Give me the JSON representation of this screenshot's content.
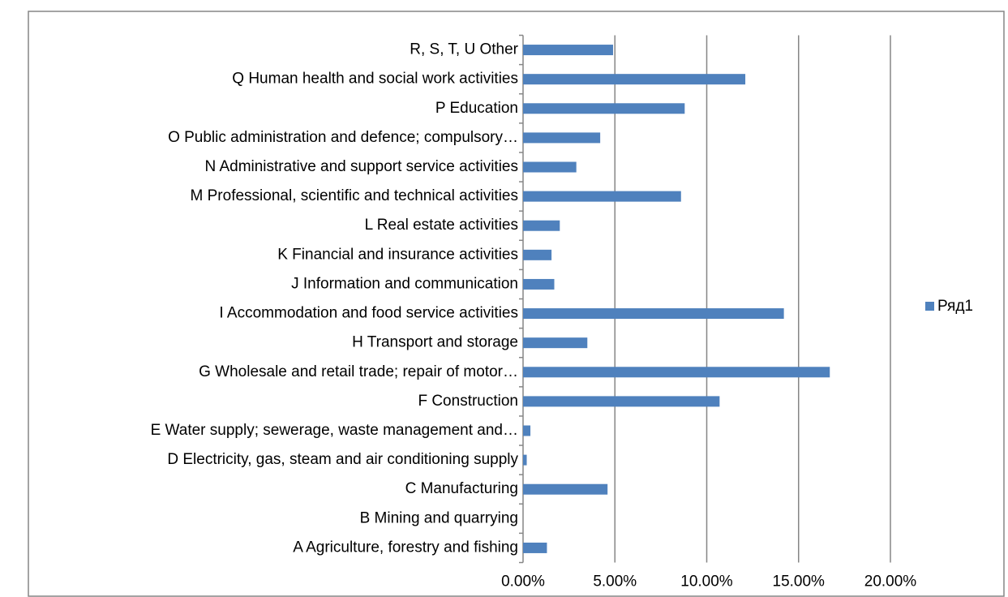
{
  "chart_data": {
    "type": "hbar",
    "categories": [
      "A Agriculture, forestry and fishing",
      "B Mining and quarrying",
      "C Manufacturing",
      "D Electricity, gas, steam and air conditioning supply",
      "E Water supply; sewerage, waste management and…",
      "F Construction",
      "G Wholesale and retail trade; repair of motor…",
      "H Transport and storage",
      "I Accommodation and food service activities",
      "J Information and communication",
      "K Financial and insurance activities",
      "L Real estate activities",
      "M Professional, scientific and technical activities",
      "N Administrative and support service activities",
      "O Public administration and defence; compulsory…",
      "P Education",
      "Q Human health and social work activities",
      "R, S, T, U Other"
    ],
    "series": [
      {
        "name": "Ряд1",
        "color": "#4f81bd",
        "values": [
          1.3,
          0,
          4.6,
          0.2,
          0.4,
          10.7,
          16.7,
          3.5,
          14.2,
          1.7,
          1.55,
          2.0,
          8.6,
          2.9,
          4.2,
          8.8,
          12.1,
          4.9
        ]
      }
    ],
    "xlim": [
      0,
      20
    ],
    "xticks": [
      {
        "value": 0,
        "label": "0.00%"
      },
      {
        "value": 5,
        "label": "5.00%"
      },
      {
        "value": 10,
        "label": "10.00%"
      },
      {
        "value": 15,
        "label": "15.00%"
      },
      {
        "value": 20,
        "label": "20.00%"
      }
    ],
    "grid": true,
    "legend": "right"
  }
}
